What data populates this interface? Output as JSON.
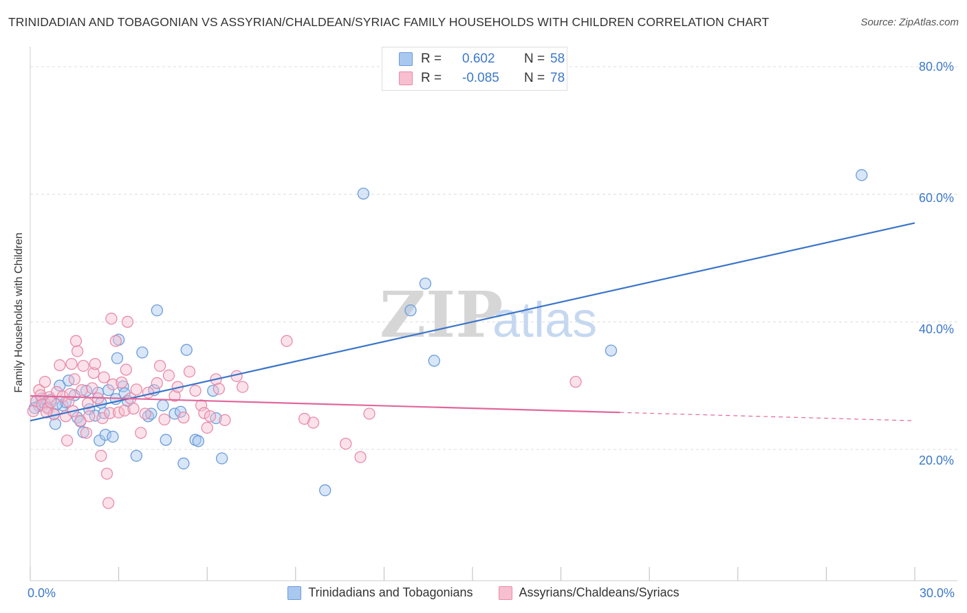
{
  "title": "TRINIDADIAN AND TOBAGONIAN VS ASSYRIAN/CHALDEAN/SYRIAC FAMILY HOUSEHOLDS WITH CHILDREN CORRELATION CHART",
  "source": "Source: ZipAtlas.com",
  "watermark": {
    "zip": "ZIP",
    "atlas": "atlas"
  },
  "stats": [
    {
      "r_label": "R =",
      "r_value": "0.602",
      "n_label": "N =",
      "n_value": "58",
      "color": "#a9c8f0",
      "border": "#6a9bd8"
    },
    {
      "r_label": "R =",
      "r_value": "-0.085",
      "n_label": "N =",
      "n_value": "78",
      "color": "#f7bfd0",
      "border": "#e88aa8"
    }
  ],
  "legend": [
    {
      "label": "Trinidadians and Tobagonians",
      "color": "#a9c8f0",
      "border": "#6a9bd8"
    },
    {
      "label": "Assyrians/Chaldeans/Syriacs",
      "color": "#f7bfd0",
      "border": "#e88aa8"
    }
  ],
  "axis_labels": {
    "x_min": "0.0%",
    "x_max": "30.0%",
    "y_ticks": [
      "20.0%",
      "40.0%",
      "60.0%",
      "80.0%"
    ]
  },
  "chart_data": {
    "type": "scatter",
    "title": "TRINIDADIAN AND TOBAGONIAN VS ASSYRIAN/CHALDEAN/SYRIAC FAMILY HOUSEHOLDS WITH CHILDREN CORRELATION CHART",
    "xlabel": "",
    "ylabel": "Family Households with Children",
    "xlim": [
      0,
      30
    ],
    "ylim": [
      0,
      82
    ],
    "yticks": [
      20,
      40,
      60,
      80
    ],
    "grid": true,
    "legend_position": "bottom",
    "series": [
      {
        "name": "Trinidadians and Tobagonians",
        "color": "#6a9bd8",
        "fill": "#a9c8f0",
        "trend": {
          "x": [
            0,
            30
          ],
          "y": [
            24.5,
            55.5
          ],
          "color": "#3a74c9"
        },
        "points": [
          [
            0.2,
            27.5
          ],
          [
            0.3,
            26.8
          ],
          [
            0.4,
            28.0
          ],
          [
            0.5,
            27.2
          ],
          [
            0.6,
            26.6
          ],
          [
            0.7,
            27.8
          ],
          [
            0.8,
            25.6
          ],
          [
            0.85,
            24.0
          ],
          [
            1.0,
            30.0
          ],
          [
            1.1,
            26.9
          ],
          [
            1.2,
            27.4
          ],
          [
            1.3,
            30.8
          ],
          [
            1.5,
            28.5
          ],
          [
            1.6,
            25.0
          ],
          [
            1.7,
            24.4
          ],
          [
            1.8,
            22.7
          ],
          [
            1.9,
            29.2
          ],
          [
            2.0,
            26.3
          ],
          [
            2.2,
            25.3
          ],
          [
            2.3,
            28.9
          ],
          [
            2.4,
            27.3
          ],
          [
            2.35,
            21.4
          ],
          [
            2.5,
            25.7
          ],
          [
            2.55,
            22.3
          ],
          [
            2.65,
            29.3
          ],
          [
            2.8,
            22.0
          ],
          [
            2.9,
            27.9
          ],
          [
            2.95,
            34.3
          ],
          [
            3.0,
            37.2
          ],
          [
            3.15,
            29.9
          ],
          [
            3.2,
            28.8
          ],
          [
            3.3,
            27.6
          ],
          [
            3.6,
            19.0
          ],
          [
            3.8,
            35.2
          ],
          [
            4.0,
            25.2
          ],
          [
            4.1,
            25.6
          ],
          [
            4.2,
            29.3
          ],
          [
            4.3,
            41.8
          ],
          [
            4.5,
            26.9
          ],
          [
            4.6,
            21.5
          ],
          [
            4.9,
            25.6
          ],
          [
            5.1,
            25.9
          ],
          [
            5.2,
            17.8
          ],
          [
            5.3,
            35.6
          ],
          [
            5.6,
            21.5
          ],
          [
            5.7,
            21.3
          ],
          [
            6.2,
            29.2
          ],
          [
            6.3,
            24.9
          ],
          [
            6.5,
            18.6
          ],
          [
            10.0,
            13.6
          ],
          [
            11.3,
            60.1
          ],
          [
            12.9,
            41.8
          ],
          [
            13.4,
            46.0
          ],
          [
            13.7,
            33.9
          ],
          [
            19.7,
            35.5
          ],
          [
            28.2,
            63.0
          ],
          [
            0.15,
            26.5
          ],
          [
            0.9,
            27.1
          ]
        ]
      },
      {
        "name": "Assyrians/Chaldeans/Syriacs",
        "color": "#e88aa8",
        "fill": "#f7bfd0",
        "trend": {
          "x": [
            0,
            20
          ],
          "y": [
            28.4,
            25.8
          ],
          "color": "#e0679a"
        },
        "trend_dashed": {
          "x": [
            20,
            30
          ],
          "y": [
            25.8,
            24.5
          ]
        },
        "points": [
          [
            0.1,
            26.0
          ],
          [
            0.2,
            27.6
          ],
          [
            0.3,
            29.3
          ],
          [
            0.35,
            28.5
          ],
          [
            0.4,
            27.0
          ],
          [
            0.5,
            30.6
          ],
          [
            0.6,
            26.4
          ],
          [
            0.65,
            28.2
          ],
          [
            0.7,
            27.4
          ],
          [
            0.8,
            25.5
          ],
          [
            0.9,
            29.0
          ],
          [
            1.0,
            33.2
          ],
          [
            1.1,
            28.3
          ],
          [
            1.2,
            25.2
          ],
          [
            1.25,
            21.4
          ],
          [
            1.3,
            27.5
          ],
          [
            1.4,
            33.4
          ],
          [
            1.45,
            26.0
          ],
          [
            1.5,
            31.0
          ],
          [
            1.6,
            35.4
          ],
          [
            1.55,
            37.0
          ],
          [
            1.7,
            24.5
          ],
          [
            1.75,
            29.3
          ],
          [
            1.8,
            33.1
          ],
          [
            1.9,
            22.6
          ],
          [
            1.95,
            27.2
          ],
          [
            2.0,
            25.2
          ],
          [
            2.1,
            29.6
          ],
          [
            2.15,
            32.0
          ],
          [
            2.2,
            33.4
          ],
          [
            2.3,
            28.0
          ],
          [
            2.4,
            19.0
          ],
          [
            2.45,
            24.9
          ],
          [
            2.5,
            31.3
          ],
          [
            2.6,
            16.2
          ],
          [
            2.65,
            11.6
          ],
          [
            2.7,
            25.7
          ],
          [
            2.75,
            40.5
          ],
          [
            2.8,
            30.2
          ],
          [
            2.9,
            37.0
          ],
          [
            3.0,
            25.8
          ],
          [
            3.1,
            30.5
          ],
          [
            3.2,
            26.1
          ],
          [
            3.25,
            32.5
          ],
          [
            3.3,
            40.0
          ],
          [
            3.4,
            28.0
          ],
          [
            3.5,
            26.4
          ],
          [
            3.6,
            29.4
          ],
          [
            3.75,
            22.6
          ],
          [
            3.9,
            25.6
          ],
          [
            4.0,
            28.9
          ],
          [
            4.3,
            30.4
          ],
          [
            4.4,
            33.1
          ],
          [
            4.55,
            24.7
          ],
          [
            4.7,
            31.6
          ],
          [
            4.9,
            28.4
          ],
          [
            5.0,
            29.8
          ],
          [
            5.2,
            25.0
          ],
          [
            5.4,
            32.2
          ],
          [
            5.6,
            29.2
          ],
          [
            5.8,
            26.9
          ],
          [
            5.9,
            25.7
          ],
          [
            6.0,
            23.4
          ],
          [
            6.1,
            25.2
          ],
          [
            6.3,
            31.0
          ],
          [
            6.4,
            29.5
          ],
          [
            6.6,
            24.6
          ],
          [
            7.0,
            31.5
          ],
          [
            7.2,
            29.8
          ],
          [
            8.7,
            37.0
          ],
          [
            9.3,
            24.8
          ],
          [
            9.6,
            24.2
          ],
          [
            10.7,
            20.9
          ],
          [
            11.2,
            18.8
          ],
          [
            11.5,
            25.6
          ],
          [
            18.5,
            30.6
          ],
          [
            0.55,
            25.8
          ],
          [
            1.35,
            28.7
          ]
        ]
      }
    ]
  }
}
